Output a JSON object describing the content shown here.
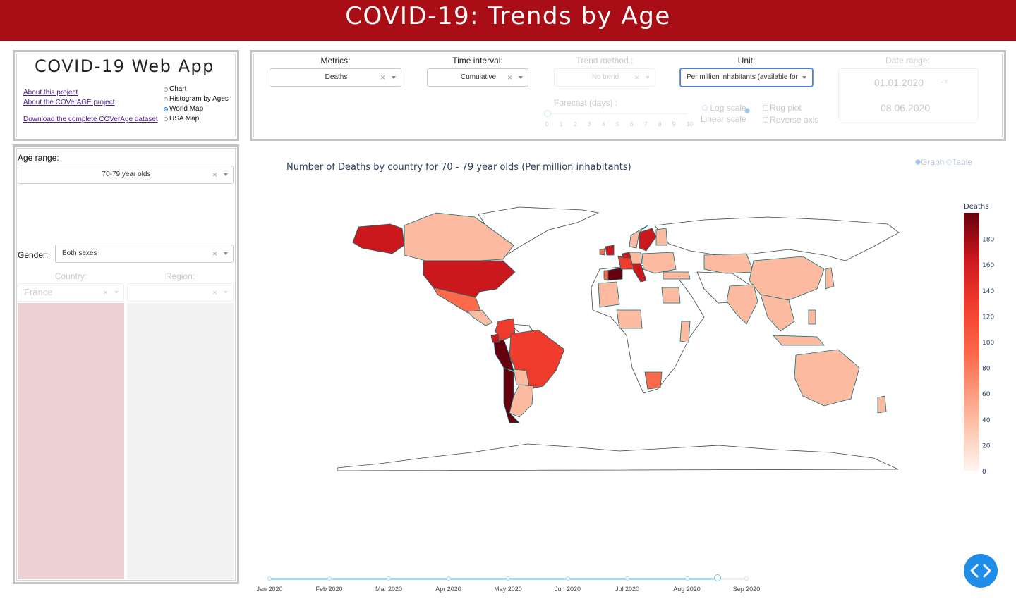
{
  "header": {
    "title": "COVID-19: Trends by Age"
  },
  "app_panel": {
    "title": "COVID-19 Web App",
    "links": [
      "About this project",
      "About the COVerAGE project",
      "Download the complete COVerAge dataset"
    ],
    "views": [
      {
        "label": "Chart",
        "selected": false
      },
      {
        "label": "Histogram by Ages",
        "selected": false
      },
      {
        "label": "World Map",
        "selected": true
      },
      {
        "label": "USA Map",
        "selected": false
      }
    ]
  },
  "controls": {
    "metrics": {
      "label": "Metrics:",
      "value": "Deaths"
    },
    "time_interval": {
      "label": "Time interval:",
      "value": "Cumulative"
    },
    "trend": {
      "label": "Trend method :",
      "value": "No trend"
    },
    "unit": {
      "label": "Unit:",
      "value": "Per million inhabitants (available for"
    },
    "date_range": {
      "label": "Date range:",
      "start": "01.01.2020",
      "end": "08.06.2020",
      "arrow": "→"
    },
    "forecast": {
      "label": "Forecast (days) :",
      "ticks": [
        "0",
        "1",
        "2",
        "3",
        "4",
        "5",
        "6",
        "7",
        "8",
        "9",
        "10"
      ],
      "value": 0
    },
    "scale": {
      "options": [
        "Log scale",
        "Linear scale"
      ],
      "selected": "Linear scale"
    },
    "rug_plot": "Rug plot",
    "reverse_axis": "Reverse axis",
    "clear_symbol": "×"
  },
  "filters": {
    "age_range": {
      "label": "Age range:",
      "value": "70-79 year olds"
    },
    "gender": {
      "label": "Gender:",
      "value": "Both sexes"
    },
    "country": {
      "label": "Country:",
      "value": "France"
    },
    "region": {
      "label": "Region:",
      "value": ""
    }
  },
  "colors": {
    "header": "#a90e16",
    "accent": "#1f8de8",
    "country_list_bg": "#ecd0d2",
    "region_list_bg": "#f2f2f2"
  },
  "map": {
    "title": "Number of Deaths by country for 70 - 79 year olds (Per million inhabitants)",
    "view_toggle": [
      "Graph",
      "Table"
    ],
    "view_selected": "Graph",
    "colorbar": {
      "title": "Deaths",
      "ticks": [
        0,
        20,
        40,
        60,
        80,
        100,
        120,
        140,
        160,
        180
      ],
      "max": 200,
      "scale": [
        "#fff5f0",
        "#fcbba1",
        "#fb6a4a",
        "#ef3b2c",
        "#cb181d",
        "#67000d"
      ]
    },
    "time_slider": {
      "ticks": [
        "Jan 2020",
        "Feb 2020",
        "Mar 2020",
        "Apr 2020",
        "May 2020",
        "Jun 2020",
        "Jul 2020",
        "Aug 2020",
        "Sep 2020"
      ],
      "value_fraction": 0.94
    }
  },
  "fab_icon": "code-brackets-icon"
}
